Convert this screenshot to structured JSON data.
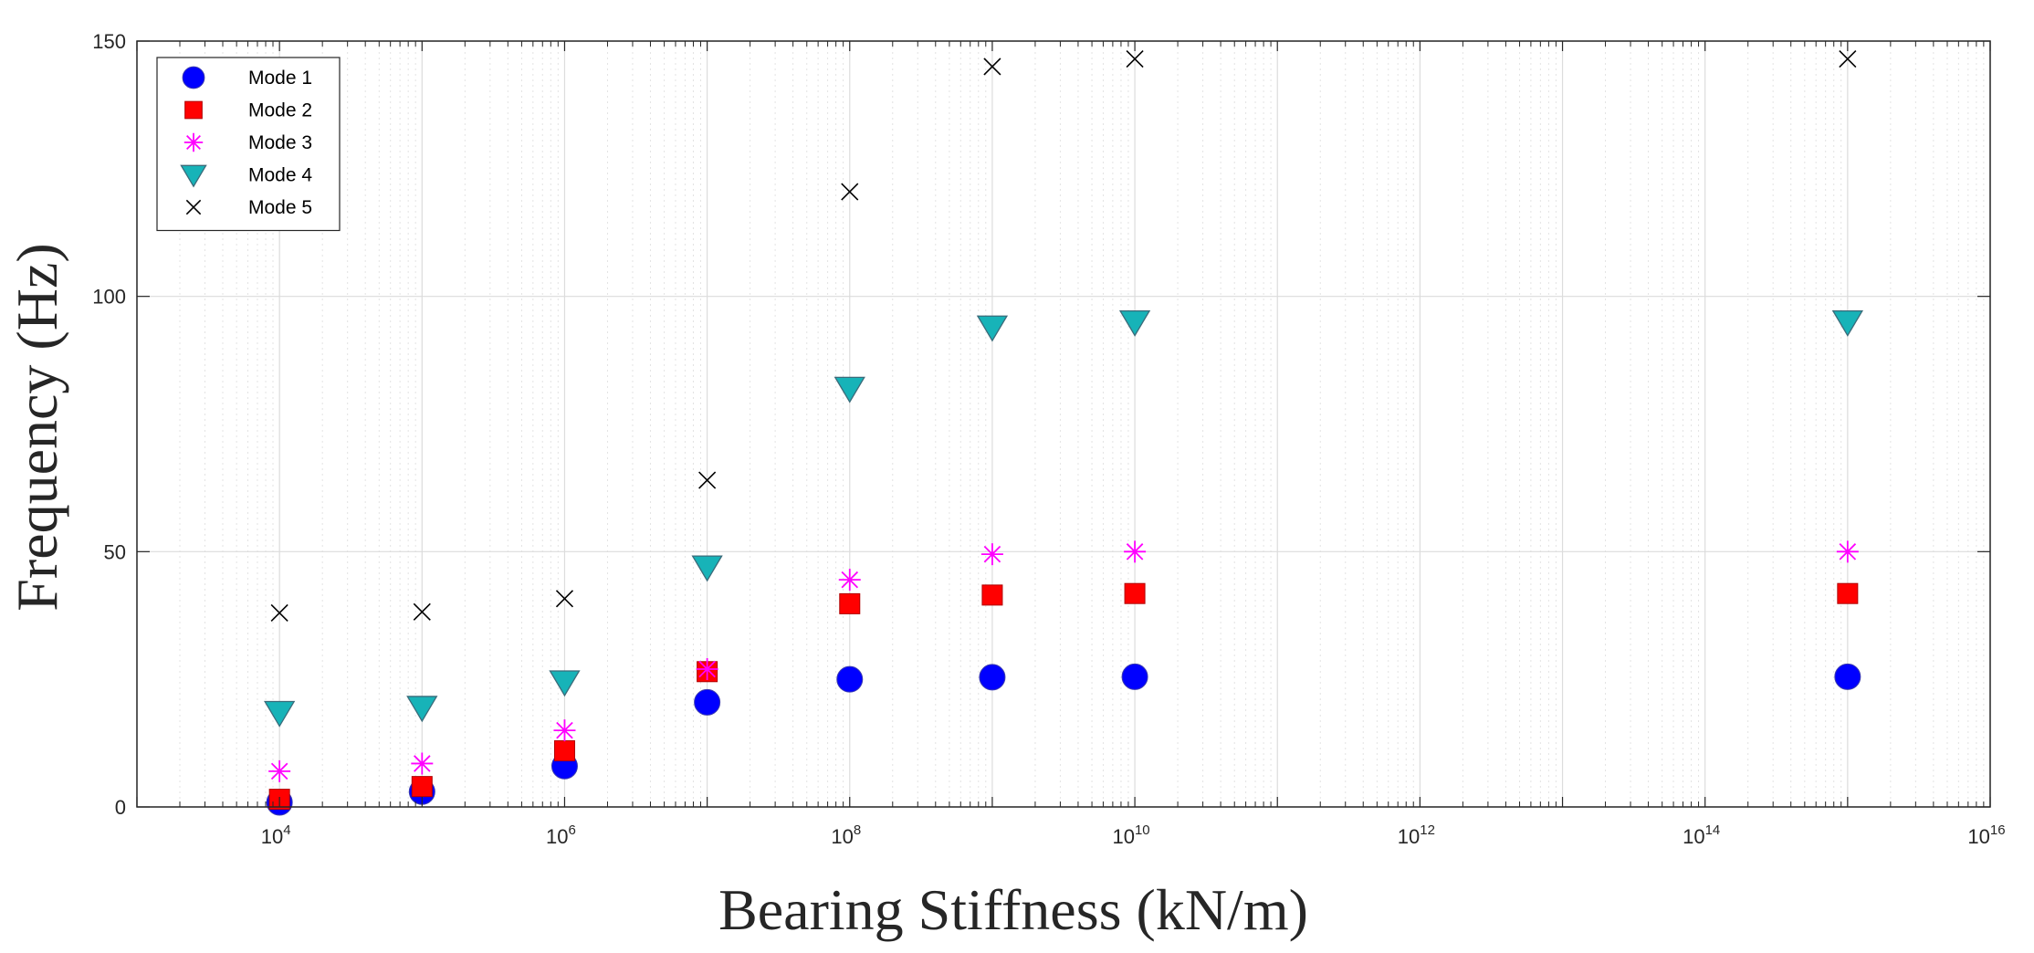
{
  "chart_data": {
    "type": "scatter",
    "xscale": "log",
    "xlabel": "Bearing Stiffness (kN/m)",
    "ylabel": "Frequency (Hz)",
    "xlim": [
      1000,
      10000000000000000
    ],
    "ylim": [
      0,
      150
    ],
    "yticks": [
      0,
      50,
      100,
      150
    ],
    "xtick_exponents": [
      4,
      6,
      8,
      10,
      12,
      14,
      16
    ],
    "xtick_base": "10",
    "grid": true,
    "legend_position": "top-left",
    "x": [
      10000,
      100000,
      1000000,
      10000000,
      100000000,
      1000000000,
      10000000000,
      1000000000000000
    ],
    "series": [
      {
        "name": "Mode 1",
        "marker": "circle",
        "color": "#0000ff",
        "values": [
          0.9,
          3.0,
          8.0,
          20.5,
          25.0,
          25.4,
          25.5,
          25.5
        ]
      },
      {
        "name": "Mode 2",
        "marker": "square",
        "color": "#ff0000",
        "values": [
          1.5,
          4.0,
          11.0,
          26.5,
          39.8,
          41.5,
          41.8,
          41.8
        ]
      },
      {
        "name": "Mode 3",
        "marker": "star",
        "color": "#ff00ff",
        "values": [
          7.0,
          8.5,
          15.0,
          27.0,
          44.5,
          49.5,
          50.0,
          50.0
        ]
      },
      {
        "name": "Mode 4",
        "marker": "triangle-down",
        "color": "#17b3b8",
        "values": [
          18.5,
          19.5,
          24.5,
          47.0,
          82.0,
          94.0,
          95.0,
          95.0
        ]
      },
      {
        "name": "Mode 5",
        "marker": "x",
        "color": "#000000",
        "values": [
          38.0,
          38.2,
          40.8,
          64.0,
          120.5,
          145.0,
          146.5,
          146.5
        ]
      }
    ]
  }
}
